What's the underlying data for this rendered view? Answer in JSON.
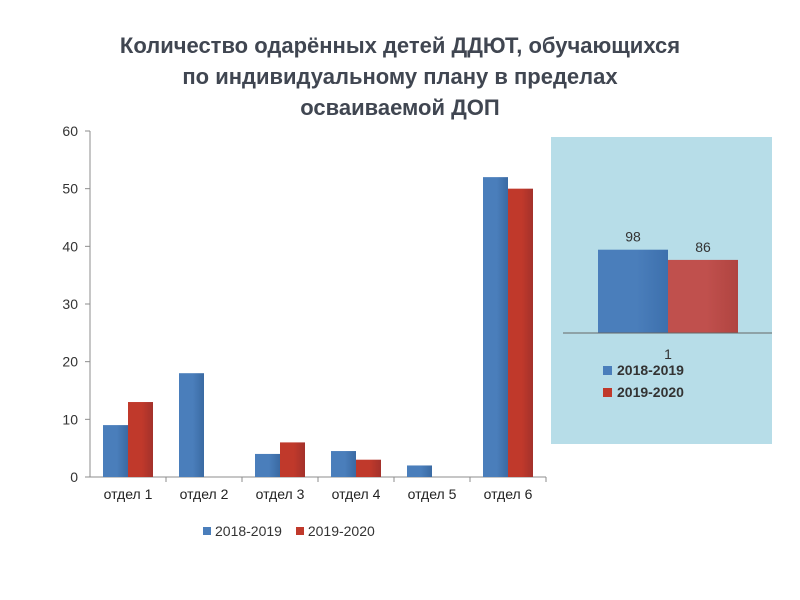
{
  "title_lines": [
    "Количество одарённых детей ДДЮТ, обучающихся",
    "по индивидуальному плану  в пределах",
    "осваиваемой  ДОП"
  ],
  "colors": {
    "series1": "#4a7ebb",
    "series2": "#c0392b",
    "inset_bg": "#b7dde8"
  },
  "chart_data": [
    {
      "type": "bar",
      "categories": [
        "отдел 1",
        "отдел 2",
        "отдел  3",
        "отдел  4",
        "отдел 5",
        "отдел 6"
      ],
      "series": [
        {
          "name": "2018-2019",
          "values": [
            9,
            18,
            4,
            4.5,
            2,
            52
          ]
        },
        {
          "name": "2019-2020",
          "values": [
            13,
            0,
            6,
            3,
            0,
            50
          ]
        }
      ],
      "ylim": [
        0,
        60
      ],
      "yticks": [
        0,
        10,
        20,
        30,
        40,
        50,
        60
      ],
      "legend": "bottom"
    },
    {
      "type": "bar",
      "categories": [
        "1"
      ],
      "series": [
        {
          "name": "2018-2019",
          "values": [
            98
          ]
        },
        {
          "name": "2019-2020",
          "values": [
            86
          ]
        }
      ],
      "data_labels": [
        "98",
        "86"
      ],
      "legend": "bottom"
    }
  ]
}
